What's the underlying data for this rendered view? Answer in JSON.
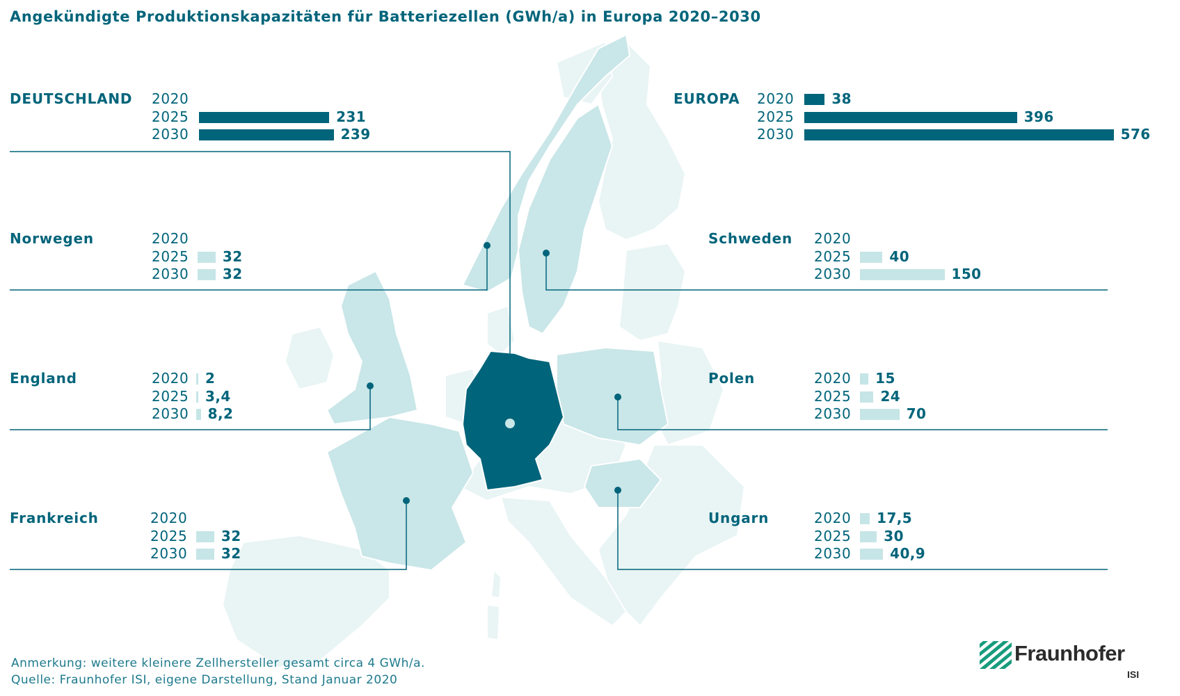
{
  "title": "Angekündigte Produktionskapazitäten für Batteriezellen (GWh/a) in Europa 2020–2030",
  "notes": {
    "remark": "Anmerkung: weitere kleinere Zellhersteller gesamt circa 4 GWh/a.",
    "source": "Quelle: Fraunhofer ISI, eigene Darstellung, Stand Januar 2020"
  },
  "logo": {
    "name": "Fraunhofer",
    "sub": "ISI"
  },
  "colors": {
    "dark": "#00647a",
    "light": "#c6e5e7",
    "map_light": "#e9f4f4",
    "map_mid": "#c9e6e8"
  },
  "chart_data": {
    "type": "bar",
    "unit": "GWh/a",
    "years": [
      "2020",
      "2025",
      "2030"
    ],
    "groups": [
      {
        "name": "DEUTSCHLAND",
        "values": [
          null,
          231,
          239
        ],
        "labels": [
          "",
          "231",
          "239"
        ],
        "style": "dark"
      },
      {
        "name": "EUROPA",
        "values": [
          38,
          396,
          576
        ],
        "labels": [
          "38",
          "396",
          "576"
        ],
        "style": "dark"
      },
      {
        "name": "Norwegen",
        "values": [
          null,
          32,
          32
        ],
        "labels": [
          "",
          "32",
          "32"
        ],
        "style": "light"
      },
      {
        "name": "Schweden",
        "values": [
          null,
          40,
          150
        ],
        "labels": [
          "",
          "40",
          "150"
        ],
        "style": "light"
      },
      {
        "name": "England",
        "values": [
          2,
          3.4,
          8.2
        ],
        "labels": [
          "2",
          "3,4",
          "8,2"
        ],
        "style": "light"
      },
      {
        "name": "Polen",
        "values": [
          15,
          24,
          70
        ],
        "labels": [
          "15",
          "24",
          "70"
        ],
        "style": "light"
      },
      {
        "name": "Frankreich",
        "values": [
          null,
          32,
          32
        ],
        "labels": [
          "",
          "32",
          "32"
        ],
        "style": "light"
      },
      {
        "name": "Ungarn",
        "values": [
          17.5,
          30,
          40.9
        ],
        "labels": [
          "17,5",
          "30",
          "40,9"
        ],
        "style": "light"
      }
    ]
  }
}
